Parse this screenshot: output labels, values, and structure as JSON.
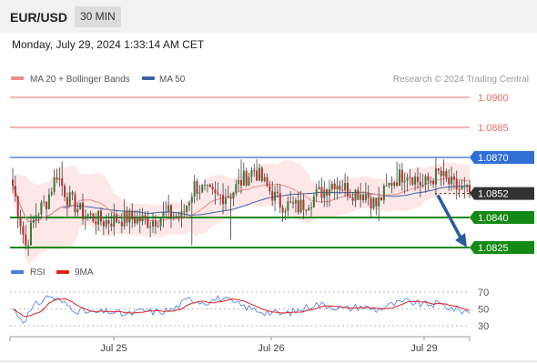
{
  "header": {
    "symbol": "EUR/USD",
    "interval": "30 MIN",
    "timestamp": "Monday, July 29, 2024 1:33:14 AM CET"
  },
  "legend": {
    "ma20": "MA 20 + Bollinger Bands",
    "ma50": "MA 50",
    "credit": "Research © 2024 Trading Central"
  },
  "colors": {
    "ma20": "#f08a8a",
    "ma50": "#3b63a8",
    "bollinger_fill": "#fde3e3",
    "resistance": "#f06a6a",
    "pivot": "#2f6fd6",
    "support": "#138a13",
    "current": "#333333",
    "arrow": "#2a5aa0",
    "rsi": "#4a7be0",
    "rsi_ma": "#e02020",
    "candle_up": "#3a7a3a",
    "candle_down": "#b83030"
  },
  "chart_data": [
    {
      "type": "candlestick",
      "instrument": "EUR/USD",
      "timeframe": "30 MIN",
      "ylim": [
        1.0823,
        1.0905
      ],
      "x_ticks": [
        "Jul 25",
        "Jul 26",
        "Jul 29"
      ],
      "levels": [
        {
          "value": 1.09,
          "label": "1.0900",
          "kind": "resistance"
        },
        {
          "value": 1.0885,
          "label": "1.0885",
          "kind": "resistance"
        },
        {
          "value": 1.087,
          "label": "1.0870",
          "kind": "pivot"
        },
        {
          "value": 1.0852,
          "label": "1.0852",
          "kind": "current"
        },
        {
          "value": 1.084,
          "label": "1.0840",
          "kind": "support"
        },
        {
          "value": 1.0825,
          "label": "1.0825",
          "kind": "support"
        }
      ],
      "projection": {
        "from": 1.0852,
        "to": 1.0825,
        "direction": "down"
      },
      "price_anchors": [
        [
          0,
          1.0856
        ],
        [
          3,
          1.0838
        ],
        [
          5,
          1.0826
        ],
        [
          9,
          1.0842
        ],
        [
          13,
          1.0848
        ],
        [
          17,
          1.0862
        ],
        [
          21,
          1.085
        ],
        [
          27,
          1.0842
        ],
        [
          35,
          1.0838
        ],
        [
          45,
          1.084
        ],
        [
          53,
          1.0838
        ],
        [
          60,
          1.0842
        ],
        [
          65,
          1.084
        ],
        [
          70,
          1.0856
        ],
        [
          78,
          1.085
        ],
        [
          84,
          1.0852
        ],
        [
          88,
          1.0858
        ],
        [
          93,
          1.0864
        ],
        [
          98,
          1.0855
        ],
        [
          103,
          1.0847
        ],
        [
          110,
          1.0845
        ],
        [
          118,
          1.0852
        ],
        [
          124,
          1.0858
        ],
        [
          130,
          1.0853
        ],
        [
          136,
          1.0852
        ],
        [
          140,
          1.0846
        ],
        [
          146,
          1.0858
        ],
        [
          152,
          1.0863
        ],
        [
          158,
          1.0856
        ],
        [
          164,
          1.0862
        ],
        [
          168,
          1.0857
        ],
        [
          172,
          1.0854
        ],
        [
          176,
          1.0852
        ]
      ]
    },
    {
      "type": "line",
      "name_rsi": "RSI",
      "name_ma": "9MA",
      "y_ticks": [
        70,
        50,
        30
      ],
      "ylim": [
        20,
        80
      ],
      "rsi_anchors": [
        [
          0,
          50
        ],
        [
          4,
          36
        ],
        [
          9,
          55
        ],
        [
          14,
          66
        ],
        [
          19,
          58
        ],
        [
          25,
          48
        ],
        [
          31,
          45
        ],
        [
          37,
          47
        ],
        [
          44,
          43
        ],
        [
          50,
          48
        ],
        [
          56,
          46
        ],
        [
          62,
          50
        ],
        [
          68,
          62
        ],
        [
          74,
          58
        ],
        [
          80,
          63
        ],
        [
          86,
          56
        ],
        [
          92,
          50
        ],
        [
          98,
          46
        ],
        [
          104,
          44
        ],
        [
          110,
          48
        ],
        [
          116,
          56
        ],
        [
          122,
          54
        ],
        [
          128,
          50
        ],
        [
          134,
          53
        ],
        [
          140,
          49
        ],
        [
          146,
          55
        ],
        [
          152,
          59
        ],
        [
          158,
          55
        ],
        [
          164,
          56
        ],
        [
          170,
          50
        ],
        [
          176,
          46
        ]
      ]
    }
  ]
}
